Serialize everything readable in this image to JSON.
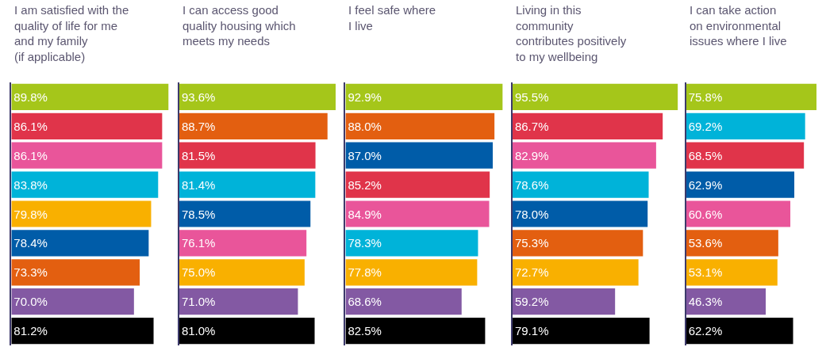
{
  "chart_data": [
    {
      "type": "bar",
      "orientation": "horizontal",
      "title": "I am satisfied with the\nquality of life for me\nand my family\n(if applicable)",
      "categories": [
        null,
        null,
        null,
        null,
        null,
        null,
        null,
        null,
        null
      ],
      "tick_labels": false,
      "values": [
        89.8,
        86.1,
        86.1,
        83.8,
        79.8,
        78.4,
        73.3,
        70.0,
        81.2
      ],
      "value_labels": [
        "89.8%",
        "86.1%",
        "86.1%",
        "83.8%",
        "79.8%",
        "78.4%",
        "73.3%",
        "70.0%",
        "81.2%"
      ],
      "colors": [
        "#a5c61a",
        "#e0344a",
        "#e9559a",
        "#00b3d9",
        "#f9b000",
        "#005ca8",
        "#e35f10",
        "#8359a3",
        "#000000"
      ]
    },
    {
      "type": "bar",
      "orientation": "horizontal",
      "title": "I can access good\nquality housing which\nmeets my needs",
      "categories": [
        null,
        null,
        null,
        null,
        null,
        null,
        null,
        null,
        null
      ],
      "tick_labels": false,
      "values": [
        93.6,
        88.7,
        81.5,
        81.4,
        78.5,
        76.1,
        75.0,
        71.0,
        81.0
      ],
      "value_labels": [
        "93.6%",
        "88.7%",
        "81.5%",
        "81.4%",
        "78.5%",
        "76.1%",
        "75.0%",
        "71.0%",
        "81.0%"
      ],
      "colors": [
        "#a5c61a",
        "#e35f10",
        "#e0344a",
        "#00b3d9",
        "#005ca8",
        "#e9559a",
        "#f9b000",
        "#8359a3",
        "#000000"
      ]
    },
    {
      "type": "bar",
      "orientation": "horizontal",
      "title": "I feel safe where\nI live",
      "categories": [
        null,
        null,
        null,
        null,
        null,
        null,
        null,
        null,
        null
      ],
      "tick_labels": false,
      "values": [
        92.9,
        88.0,
        87.0,
        85.2,
        84.9,
        78.3,
        77.8,
        68.6,
        82.5
      ],
      "value_labels": [
        "92.9%",
        "88.0%",
        "87.0%",
        "85.2%",
        "84.9%",
        "78.3%",
        "77.8%",
        "68.6%",
        "82.5%"
      ],
      "colors": [
        "#a5c61a",
        "#e35f10",
        "#005ca8",
        "#e0344a",
        "#e9559a",
        "#00b3d9",
        "#f9b000",
        "#8359a3",
        "#000000"
      ]
    },
    {
      "type": "bar",
      "orientation": "horizontal",
      "title": "Living in this\ncommunity\ncontributes positively\nto my wellbeing",
      "categories": [
        null,
        null,
        null,
        null,
        null,
        null,
        null,
        null,
        null
      ],
      "tick_labels": false,
      "values": [
        95.5,
        86.7,
        82.9,
        78.6,
        78.0,
        75.3,
        72.7,
        59.2,
        79.1
      ],
      "value_labels": [
        "95.5%",
        "86.7%",
        "82.9%",
        "78.6%",
        "78.0%",
        "75.3%",
        "72.7%",
        "59.2%",
        "79.1%"
      ],
      "colors": [
        "#a5c61a",
        "#e0344a",
        "#e9559a",
        "#00b3d9",
        "#005ca8",
        "#e35f10",
        "#f9b000",
        "#8359a3",
        "#000000"
      ]
    },
    {
      "type": "bar",
      "orientation": "horizontal",
      "title": "I can take action\non environmental\nissues where I live",
      "categories": [
        null,
        null,
        null,
        null,
        null,
        null,
        null,
        null,
        null
      ],
      "tick_labels": false,
      "values": [
        75.8,
        69.2,
        68.5,
        62.9,
        60.6,
        53.6,
        53.1,
        46.3,
        62.2
      ],
      "value_labels": [
        "75.8%",
        "69.2%",
        "68.5%",
        "62.9%",
        "60.6%",
        "53.6%",
        "53.1%",
        "46.3%",
        "62.2%"
      ],
      "colors": [
        "#a5c61a",
        "#00b3d9",
        "#e0344a",
        "#005ca8",
        "#e9559a",
        "#e35f10",
        "#f9b000",
        "#8359a3",
        "#000000"
      ]
    }
  ]
}
